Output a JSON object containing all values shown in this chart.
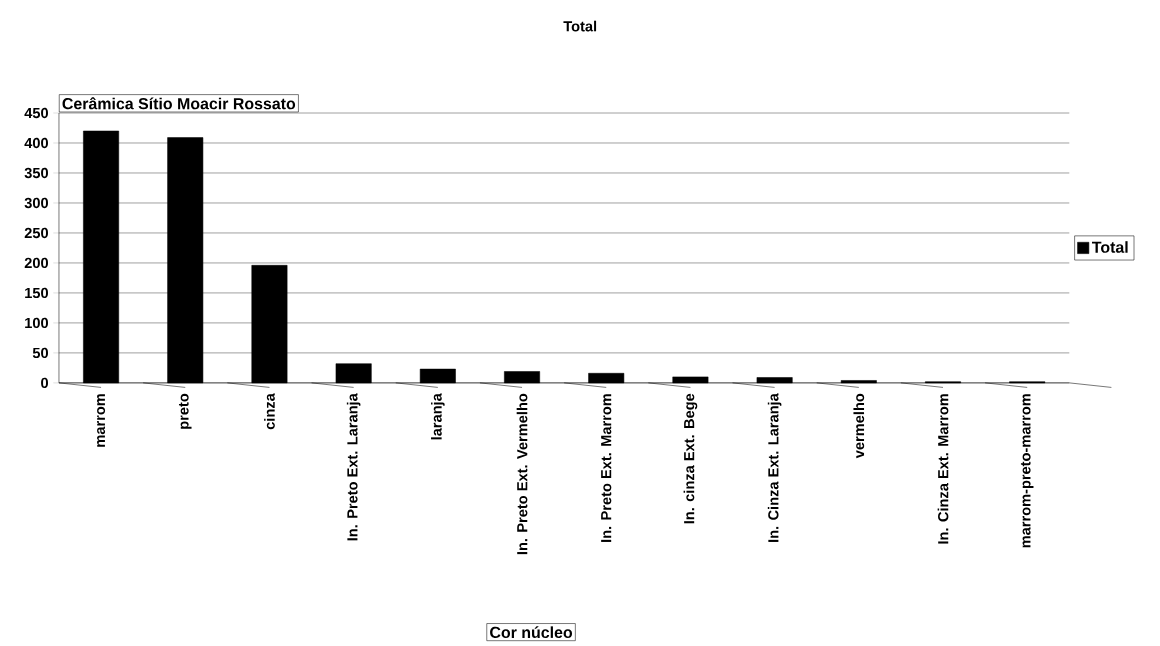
{
  "chart_data": {
    "type": "bar",
    "title": "Total",
    "subtitle": "Cerâmica Sítio Moacir Rossato",
    "xlabel": "Cor núcleo",
    "categories": [
      "marrom",
      "preto",
      "cinza",
      "In. Preto Ext. Laranja",
      "laranja",
      "In. Preto Ext. Vermelho",
      "In. Preto Ext. Marrom",
      "In. cinza Ext. Bege",
      "In. Cinza Ext. Laranja",
      "vermelho",
      "In. Cinza Ext. Marrom",
      "marrom-preto-marrom"
    ],
    "series": [
      {
        "name": "Total",
        "color": "#000000",
        "values": [
          420,
          409,
          196,
          32,
          23,
          19,
          16,
          10,
          9,
          4,
          2,
          2
        ]
      }
    ],
    "ylim": [
      0,
      450
    ],
    "yticks": [
      0,
      50,
      100,
      150,
      200,
      250,
      300,
      350,
      400,
      450
    ],
    "grid": "y",
    "legend": "right"
  }
}
